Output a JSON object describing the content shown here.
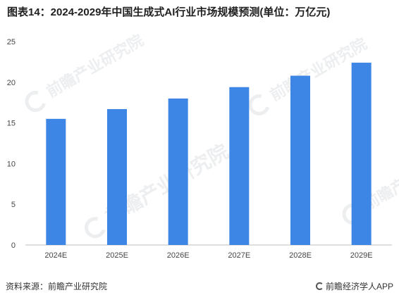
{
  "title": "图表14：2024-2029年中国生成式AI行业市场规模预测(单位：万亿元)",
  "chart_data": {
    "type": "bar",
    "categories": [
      "2024E",
      "2025E",
      "2026E",
      "2027E",
      "2028E",
      "2029E"
    ],
    "values": [
      15.5,
      16.7,
      18.0,
      19.4,
      20.8,
      22.4
    ],
    "ylim": [
      0,
      25
    ],
    "yticks": [
      0,
      5,
      10,
      15,
      20,
      25
    ],
    "grid": false,
    "bar_color": "#3d86e5"
  },
  "watermark": {
    "text": "前瞻产业研究院"
  },
  "footer": {
    "source": "资料来源：前瞻产业研究院",
    "brand": "前瞻经济学人APP"
  }
}
